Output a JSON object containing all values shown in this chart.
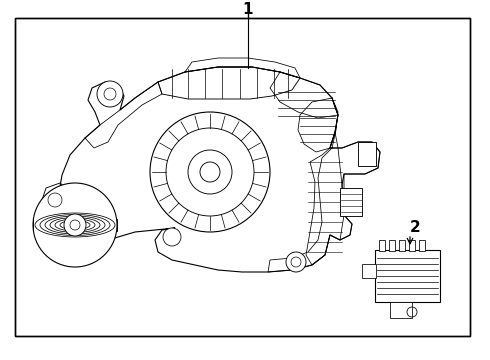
{
  "background_color": "#ffffff",
  "line_color": "#000000",
  "fig_width": 4.9,
  "fig_height": 3.6,
  "dpi": 100,
  "label1_text": "1",
  "label2_text": "2"
}
